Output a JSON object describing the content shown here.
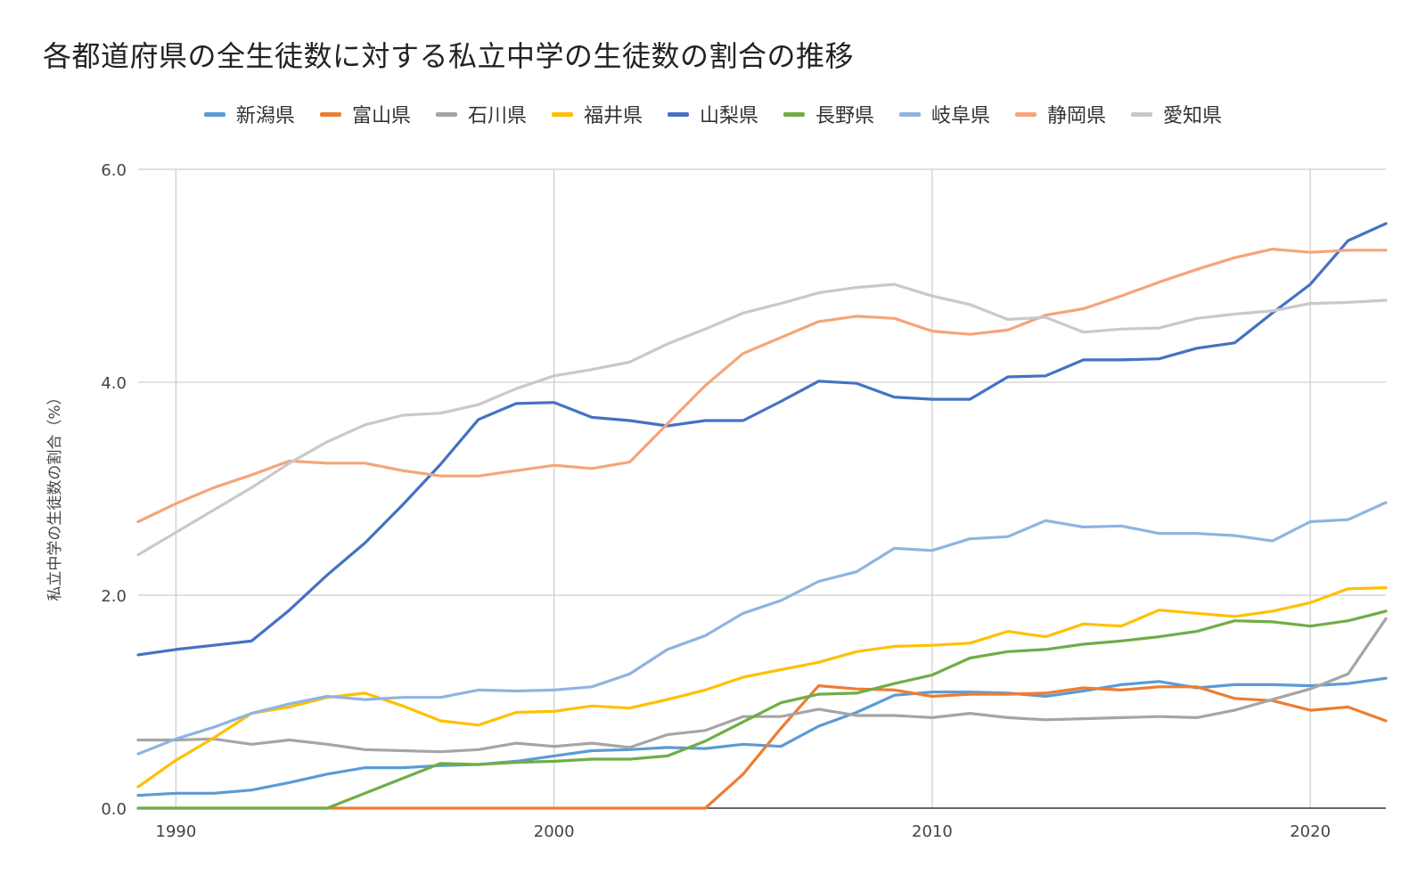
{
  "chart_data": {
    "type": "line",
    "title": "各都道府県の全生徒数に対する私立中学の生徒数の割合の推移",
    "xlabel": "",
    "ylabel": "私立中学の生徒数の割合（%）",
    "ylim": [
      0,
      6
    ],
    "xlim": [
      1989,
      2022
    ],
    "yticks": [
      "0.0",
      "2.0",
      "4.0",
      "6.0"
    ],
    "xticks": [
      "1990",
      "2000",
      "2010",
      "2020"
    ],
    "legend_position": "top",
    "grid": true,
    "x": [
      1989,
      1990,
      1991,
      1992,
      1993,
      1994,
      1995,
      1996,
      1997,
      1998,
      1999,
      2000,
      2001,
      2002,
      2003,
      2004,
      2005,
      2006,
      2007,
      2008,
      2009,
      2010,
      2011,
      2012,
      2013,
      2014,
      2015,
      2016,
      2017,
      2018,
      2019,
      2020,
      2021,
      2022
    ],
    "series": [
      {
        "name": "新潟県",
        "color": "#5b9bd5",
        "values": [
          0.12,
          0.14,
          0.14,
          0.17,
          0.24,
          0.32,
          0.38,
          0.38,
          0.4,
          0.41,
          0.44,
          0.49,
          0.54,
          0.55,
          0.57,
          0.56,
          0.6,
          0.58,
          0.77,
          0.9,
          1.06,
          1.09,
          1.09,
          1.08,
          1.05,
          1.1,
          1.16,
          1.19,
          1.13,
          1.16,
          1.16,
          1.15,
          1.17,
          1.22
        ]
      },
      {
        "name": "富山県",
        "color": "#ed7d31",
        "values": [
          0,
          0,
          0,
          0,
          0,
          0,
          0,
          0,
          0,
          0,
          0,
          0,
          0,
          0,
          0,
          0,
          0.32,
          0.75,
          1.15,
          1.12,
          1.11,
          1.05,
          1.07,
          1.07,
          1.08,
          1.13,
          1.11,
          1.14,
          1.14,
          1.03,
          1.01,
          0.92,
          0.95,
          0.82
        ]
      },
      {
        "name": "石川県",
        "color": "#a5a5a5",
        "values": [
          0.64,
          0.64,
          0.65,
          0.6,
          0.64,
          0.6,
          0.55,
          0.54,
          0.53,
          0.55,
          0.61,
          0.58,
          0.61,
          0.57,
          0.69,
          0.73,
          0.86,
          0.86,
          0.93,
          0.87,
          0.87,
          0.85,
          0.89,
          0.85,
          0.83,
          0.84,
          0.85,
          0.86,
          0.85,
          0.92,
          1.02,
          1.12,
          1.26,
          1.78
        ]
      },
      {
        "name": "福井県",
        "color": "#ffc000",
        "values": [
          0.2,
          0.45,
          0.66,
          0.89,
          0.95,
          1.04,
          1.08,
          0.96,
          0.82,
          0.78,
          0.9,
          0.91,
          0.96,
          0.94,
          1.02,
          1.11,
          1.23,
          1.3,
          1.37,
          1.47,
          1.52,
          1.53,
          1.55,
          1.66,
          1.61,
          1.73,
          1.71,
          1.86,
          1.83,
          1.8,
          1.85,
          1.93,
          2.06,
          2.07
        ]
      },
      {
        "name": "山梨県",
        "color": "#4472c4",
        "values": [
          1.44,
          1.49,
          1.53,
          1.57,
          1.86,
          2.19,
          2.49,
          2.85,
          3.23,
          3.65,
          3.8,
          3.81,
          3.67,
          3.64,
          3.59,
          3.64,
          3.64,
          3.82,
          4.01,
          3.99,
          3.86,
          3.84,
          3.84,
          4.05,
          4.06,
          4.21,
          4.21,
          4.22,
          4.32,
          4.37,
          4.65,
          4.92,
          5.33,
          5.49
        ]
      },
      {
        "name": "長野県",
        "color": "#70ad47",
        "values": [
          0,
          0,
          0,
          0,
          0,
          0,
          0.14,
          0.28,
          0.42,
          0.41,
          0.43,
          0.44,
          0.46,
          0.46,
          0.49,
          0.63,
          0.81,
          0.99,
          1.07,
          1.08,
          1.17,
          1.25,
          1.41,
          1.47,
          1.49,
          1.54,
          1.57,
          1.61,
          1.66,
          1.76,
          1.75,
          1.71,
          1.76,
          1.85
        ]
      },
      {
        "name": "岐阜県",
        "color": "#8fb4e0",
        "values": [
          0.51,
          0.65,
          0.76,
          0.89,
          0.98,
          1.05,
          1.02,
          1.04,
          1.04,
          1.11,
          1.1,
          1.11,
          1.14,
          1.26,
          1.49,
          1.62,
          1.83,
          1.95,
          2.13,
          2.22,
          2.44,
          2.42,
          2.53,
          2.55,
          2.7,
          2.64,
          2.65,
          2.58,
          2.58,
          2.56,
          2.51,
          2.69,
          2.71,
          2.87
        ]
      },
      {
        "name": "静岡県",
        "color": "#f4a57a",
        "values": [
          2.69,
          2.86,
          3.01,
          3.13,
          3.26,
          3.24,
          3.24,
          3.17,
          3.12,
          3.12,
          3.17,
          3.22,
          3.19,
          3.25,
          3.61,
          3.97,
          4.27,
          4.42,
          4.57,
          4.62,
          4.6,
          4.48,
          4.45,
          4.49,
          4.63,
          4.69,
          4.81,
          4.94,
          5.06,
          5.17,
          5.25,
          5.22,
          5.24,
          5.24
        ]
      },
      {
        "name": "愛知県",
        "color": "#c9c9c9",
        "values": [
          2.38,
          2.59,
          2.8,
          3.01,
          3.24,
          3.44,
          3.6,
          3.69,
          3.71,
          3.79,
          3.94,
          4.06,
          4.12,
          4.19,
          4.36,
          4.5,
          4.65,
          4.74,
          4.84,
          4.89,
          4.92,
          4.81,
          4.73,
          4.59,
          4.61,
          4.47,
          4.5,
          4.51,
          4.6,
          4.64,
          4.67,
          4.74,
          4.75,
          4.77
        ]
      }
    ]
  }
}
